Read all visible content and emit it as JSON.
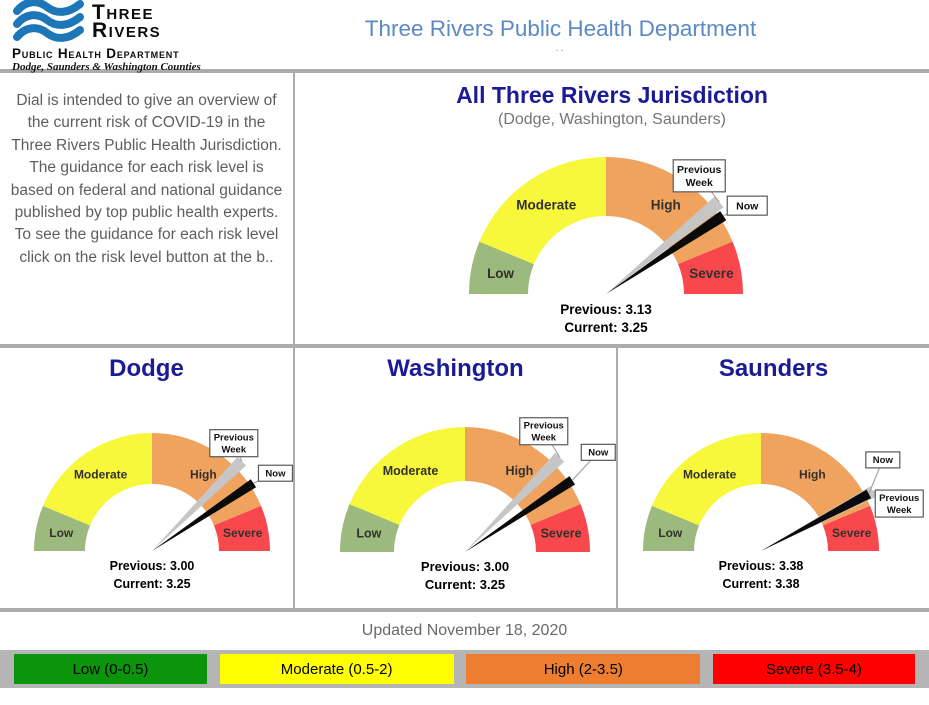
{
  "header": {
    "logo": {
      "name_line1": "Three",
      "name_line2": "Rivers",
      "dept": "Public Health Department",
      "tagline": "Dodge, Saunders & Washington Counties"
    },
    "title": "Three Rivers Public Health Department",
    "title_dots": ".."
  },
  "intro": {
    "text": "Dial is intended to give an overview of the current risk of COVID-19 in the Three Rivers Public Health Jurisdiction. The guidance for each risk level is based on federal and national guidance published by top public health experts. To see the guidance for each risk level click on the risk level button at the b.."
  },
  "scale": {
    "min": 0,
    "max": 4
  },
  "segments": [
    {
      "label": "Low",
      "range": [
        0,
        0.5
      ],
      "color": "#9CBA7D"
    },
    {
      "label": "Moderate",
      "range": [
        0.5,
        2
      ],
      "color": "#F7F73B"
    },
    {
      "label": "High",
      "range": [
        2,
        3.5
      ],
      "color": "#EFA35F"
    },
    {
      "label": "Severe",
      "range": [
        3.5,
        4
      ],
      "color": "#F8484E"
    }
  ],
  "callouts": {
    "previous": "Previous Week",
    "now": "Now"
  },
  "gauges": [
    {
      "id": "all",
      "title": "All Three Rivers Jurisdiction",
      "subtitle": "(Dodge, Washington, Saunders)",
      "previous": 3.13,
      "current": 3.25,
      "previous_label": "Previous: 3.13",
      "current_label": "Current: 3.25"
    },
    {
      "id": "dodge",
      "title": "Dodge",
      "previous": 3.0,
      "current": 3.25,
      "previous_label": "Previous: 3.00",
      "current_label": "Current: 3.25"
    },
    {
      "id": "washington",
      "title": "Washington",
      "previous": 3.0,
      "current": 3.25,
      "previous_label": "Previous: 3.00",
      "current_label": "Current: 3.25"
    },
    {
      "id": "saunders",
      "title": "Saunders",
      "previous": 3.38,
      "current": 3.38,
      "previous_label": "Previous: 3.38",
      "current_label": "Current: 3.38"
    }
  ],
  "footer": {
    "updated": "Updated November 18, 2020"
  },
  "legend": [
    {
      "label": "Low (0-0.5)",
      "color": "#0D940D"
    },
    {
      "label": "Moderate (0.5-2)",
      "color": "#FFFF00"
    },
    {
      "label": "High (2-3.5)",
      "color": "#ED7D31"
    },
    {
      "label": "Severe (3.5-4)",
      "color": "#FE0000"
    }
  ],
  "colors": {
    "header_title_blue": "#5B89C6",
    "panel_title_navy": "#1B1B96",
    "logo_wave_blue": "#1C76B8",
    "needle_now": "#0A0A0A",
    "needle_previous": "#C6C6C6",
    "divider_gray": "#ABABAB",
    "legend_bar_bg": "#B5B5B5",
    "segment_label_color": "#33312B"
  },
  "chart_data": {
    "type": "gauge",
    "scale": {
      "min": 0,
      "max": 4
    },
    "segments": [
      {
        "label": "Low",
        "range": [
          0,
          0.5
        ]
      },
      {
        "label": "Moderate",
        "range": [
          0.5,
          2
        ]
      },
      {
        "label": "High",
        "range": [
          2,
          3.5
        ]
      },
      {
        "label": "Severe",
        "range": [
          3.5,
          4
        ]
      }
    ],
    "gauges": [
      {
        "title": "All Three Rivers Jurisdiction",
        "previous_week": 3.13,
        "now": 3.25
      },
      {
        "title": "Dodge",
        "previous_week": 3.0,
        "now": 3.25
      },
      {
        "title": "Washington",
        "previous_week": 3.0,
        "now": 3.25
      },
      {
        "title": "Saunders",
        "previous_week": 3.38,
        "now": 3.38
      }
    ],
    "updated": "Updated November 18, 2020"
  }
}
